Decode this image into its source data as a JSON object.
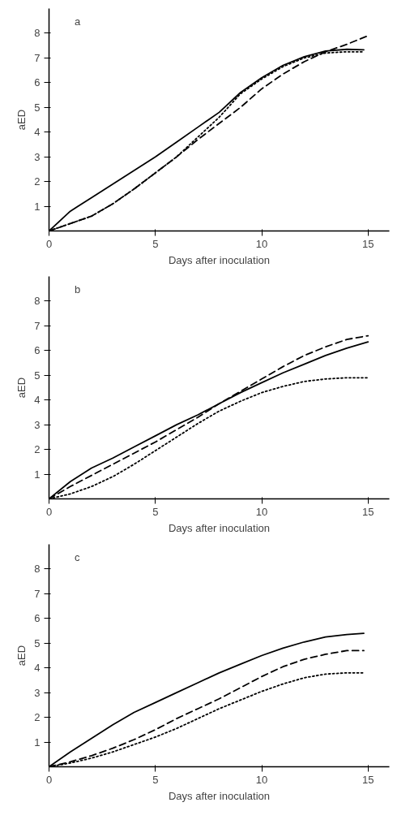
{
  "chart_data": [
    {
      "type": "line",
      "title": "a",
      "xlabel": "Days after inoculation",
      "ylabel": "aED",
      "xlim": [
        0,
        16
      ],
      "ylim": [
        0,
        9
      ],
      "xticks": [
        0,
        5,
        10,
        15
      ],
      "yticks": [
        1,
        2,
        3,
        4,
        5,
        6,
        7,
        8
      ],
      "series": [
        {
          "color": "#000000",
          "line_style": "solid",
          "x": [
            0,
            1,
            2,
            3,
            4,
            5,
            6,
            7,
            8,
            9,
            10,
            11,
            12,
            13,
            14,
            14.8
          ],
          "values": [
            0,
            0.8,
            1.35,
            1.9,
            2.45,
            3.0,
            3.6,
            4.2,
            4.8,
            5.6,
            6.2,
            6.7,
            7.05,
            7.28,
            7.35,
            7.33
          ]
        },
        {
          "color": "#000000",
          "line_style": "dashed",
          "x": [
            0,
            1,
            2,
            3,
            4,
            5,
            6,
            7,
            8,
            9,
            10,
            11,
            12,
            13,
            14,
            15
          ],
          "values": [
            0,
            0.3,
            0.6,
            1.1,
            1.7,
            2.35,
            3.0,
            3.7,
            4.35,
            5.0,
            5.75,
            6.35,
            6.85,
            7.25,
            7.55,
            7.9
          ]
        },
        {
          "color": "#000000",
          "line_style": "dotted",
          "x": [
            0,
            1,
            2,
            3,
            4,
            5,
            6,
            7,
            8,
            9,
            10,
            11,
            12,
            13,
            14,
            14.8
          ],
          "values": [
            0,
            0.3,
            0.6,
            1.1,
            1.7,
            2.35,
            3.0,
            3.8,
            4.6,
            5.55,
            6.15,
            6.65,
            7.0,
            7.2,
            7.25,
            7.25
          ]
        }
      ]
    },
    {
      "type": "line",
      "title": "b",
      "xlabel": "Days after inoculation",
      "ylabel": "aED",
      "xlim": [
        0,
        16
      ],
      "ylim": [
        0,
        9
      ],
      "xticks": [
        0,
        5,
        10,
        15
      ],
      "yticks": [
        1,
        2,
        3,
        4,
        5,
        6,
        7,
        8
      ],
      "series": [
        {
          "color": "#000000",
          "line_style": "solid",
          "x": [
            0,
            1,
            2,
            3,
            4,
            5,
            6,
            7,
            8,
            9,
            10,
            11,
            12,
            13,
            14,
            15
          ],
          "values": [
            0,
            0.7,
            1.25,
            1.65,
            2.1,
            2.55,
            3.0,
            3.4,
            3.85,
            4.3,
            4.7,
            5.1,
            5.45,
            5.8,
            6.1,
            6.35
          ]
        },
        {
          "color": "#000000",
          "line_style": "dashed",
          "x": [
            0,
            1,
            2,
            3,
            4,
            5,
            6,
            7,
            8,
            9,
            10,
            11,
            12,
            13,
            14,
            15
          ],
          "values": [
            0,
            0.5,
            0.95,
            1.4,
            1.85,
            2.3,
            2.8,
            3.3,
            3.85,
            4.35,
            4.85,
            5.35,
            5.8,
            6.15,
            6.45,
            6.6
          ]
        },
        {
          "color": "#000000",
          "line_style": "dotted",
          "x": [
            0,
            1,
            2,
            3,
            4,
            5,
            6,
            7,
            8,
            9,
            10,
            11,
            12,
            13,
            14,
            15
          ],
          "values": [
            0,
            0.2,
            0.5,
            0.9,
            1.4,
            1.95,
            2.5,
            3.05,
            3.55,
            3.95,
            4.3,
            4.55,
            4.75,
            4.85,
            4.9,
            4.9
          ]
        }
      ]
    },
    {
      "type": "line",
      "title": "c",
      "xlabel": "Days after inoculation",
      "ylabel": "aED",
      "xlim": [
        0,
        16
      ],
      "ylim": [
        0,
        9
      ],
      "xticks": [
        0,
        5,
        10,
        15
      ],
      "yticks": [
        1,
        2,
        3,
        4,
        5,
        6,
        7,
        8
      ],
      "series": [
        {
          "color": "#000000",
          "line_style": "solid",
          "x": [
            0,
            1,
            2,
            3,
            4,
            5,
            6,
            7,
            8,
            9,
            10,
            11,
            12,
            13,
            14,
            14.8
          ],
          "values": [
            0,
            0.6,
            1.15,
            1.7,
            2.2,
            2.6,
            3.0,
            3.4,
            3.8,
            4.15,
            4.5,
            4.8,
            5.05,
            5.25,
            5.35,
            5.4
          ]
        },
        {
          "color": "#000000",
          "line_style": "dashed",
          "x": [
            0,
            1,
            2,
            3,
            4,
            5,
            6,
            7,
            8,
            9,
            10,
            11,
            12,
            13,
            14,
            14.8
          ],
          "values": [
            0,
            0.2,
            0.45,
            0.75,
            1.1,
            1.5,
            1.95,
            2.35,
            2.75,
            3.2,
            3.65,
            4.05,
            4.35,
            4.55,
            4.7,
            4.7
          ]
        },
        {
          "color": "#000000",
          "line_style": "dotted",
          "x": [
            0,
            1,
            2,
            3,
            4,
            5,
            6,
            7,
            8,
            9,
            10,
            11,
            12,
            13,
            14,
            14.8
          ],
          "values": [
            0,
            0.15,
            0.35,
            0.6,
            0.9,
            1.2,
            1.55,
            1.95,
            2.35,
            2.7,
            3.05,
            3.35,
            3.6,
            3.75,
            3.8,
            3.8
          ]
        }
      ]
    }
  ]
}
